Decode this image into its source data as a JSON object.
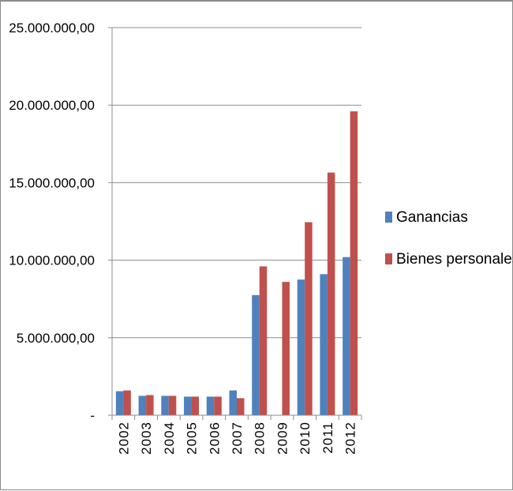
{
  "chart_data": {
    "type": "bar",
    "title": "",
    "xlabel": "",
    "ylabel": "",
    "categories": [
      "2002",
      "2003",
      "2004",
      "2005",
      "2006",
      "2007",
      "2008",
      "2009",
      "2010",
      "2011",
      "2012"
    ],
    "series": [
      {
        "name": "Ganancias",
        "color": "#4F81BD",
        "values": [
          1550000,
          1250000,
          1250000,
          1200000,
          1200000,
          1600000,
          7750000,
          0,
          8750000,
          9100000,
          10200000
        ]
      },
      {
        "name": "Bienes personales",
        "color": "#C0504D",
        "values": [
          1600000,
          1300000,
          1250000,
          1200000,
          1200000,
          1100000,
          9600000,
          8600000,
          12450000,
          15650000,
          19600000
        ]
      }
    ],
    "ylim": [
      0,
      25000000
    ],
    "y_ticks": [
      0,
      5000000,
      10000000,
      15000000,
      20000000,
      25000000
    ],
    "y_tick_labels": [
      "-",
      "5.000.000,00",
      "10.000.000,00",
      "15.000.000,00",
      "20.000.000,00",
      "25.000.000,00"
    ],
    "grid": true,
    "legend_position": "right"
  }
}
